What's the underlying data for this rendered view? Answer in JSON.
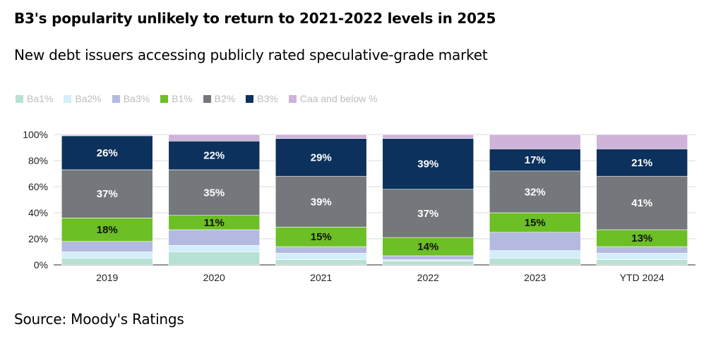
{
  "header": {
    "title": "B3's popularity unlikely to return to 2021-2022 levels in 2025",
    "subtitle": "New debt issuers accessing publicly rated speculative-grade market"
  },
  "footer": {
    "source": "Source: Moody's Ratings"
  },
  "chart_data": {
    "type": "bar",
    "stacked": true,
    "categories": [
      "2019",
      "2020",
      "2021",
      "2022",
      "2023",
      "YTD 2024"
    ],
    "y_ticks": [
      "0%",
      "20%",
      "40%",
      "60%",
      "80%",
      "100%"
    ],
    "ylim": [
      0,
      100
    ],
    "grid": true,
    "legend_position": "top-left",
    "series": [
      {
        "name": "Ba1%",
        "color": "#b7e1d4",
        "values": [
          5,
          10,
          4,
          3,
          5,
          4
        ],
        "labels": [
          "",
          "",
          "",
          "",
          "",
          ""
        ]
      },
      {
        "name": "Ba2%",
        "color": "#d3eef8",
        "values": [
          5,
          5,
          5,
          1,
          6,
          5
        ],
        "labels": [
          "",
          "",
          "",
          "",
          "",
          ""
        ]
      },
      {
        "name": "Ba3%",
        "color": "#b3b9e0",
        "values": [
          8,
          12,
          5,
          3,
          14,
          5
        ],
        "labels": [
          "",
          "",
          "",
          "",
          "",
          ""
        ]
      },
      {
        "name": "B1%",
        "color": "#6cbf24",
        "values": [
          18,
          11,
          15,
          14,
          15,
          13
        ],
        "labels": [
          "18%",
          "11%",
          "15%",
          "14%",
          "15%",
          "13%"
        ]
      },
      {
        "name": "B2%",
        "color": "#74777b",
        "values": [
          37,
          35,
          39,
          37,
          32,
          41
        ],
        "labels": [
          "37%",
          "35%",
          "39%",
          "37%",
          "32%",
          "41%"
        ]
      },
      {
        "name": "B3%",
        "color": "#0c315c",
        "values": [
          26,
          22,
          29,
          39,
          17,
          21
        ],
        "labels": [
          "26%",
          "22%",
          "29%",
          "39%",
          "17%",
          "21%"
        ]
      },
      {
        "name": "Caa and below %",
        "color": "#cfb3d9",
        "values": [
          1,
          5,
          3,
          3,
          11,
          11
        ],
        "labels": [
          "",
          "",
          "",
          "",
          "",
          ""
        ]
      }
    ]
  }
}
